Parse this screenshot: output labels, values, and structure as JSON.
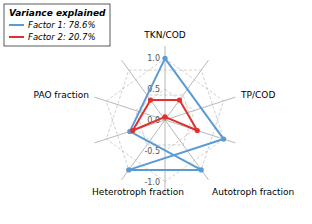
{
  "chart_data": {
    "type": "radar",
    "categories": [
      "TKN/COD",
      "TP/COD",
      "Autotroph fraction",
      "Heterotroph fraction",
      "PAO fraction"
    ],
    "series": [
      {
        "name": "Factor 1: 78.6%",
        "color": "#5b9bd5",
        "values": [
          1.0,
          -0.6,
          1.0,
          1.0,
          -1.0
        ]
      },
      {
        "name": "Factor 2: 20.7%",
        "color": "#e03030",
        "values": [
          0.05,
          -0.55,
          -0.4,
          -0.4,
          -0.55
        ]
      }
    ],
    "legend_title": "Variance explained",
    "ylim": [
      -1.2,
      1.2
    ],
    "yticks": [
      {
        "value": -1.0,
        "label": "-1.0"
      },
      -0.5,
      {
        "value": 0.0,
        "label": "0.0"
      },
      0.5,
      {
        "value": 1.0,
        "label": "1.0"
      }
    ],
    "grid": true,
    "legend": "upper left"
  }
}
